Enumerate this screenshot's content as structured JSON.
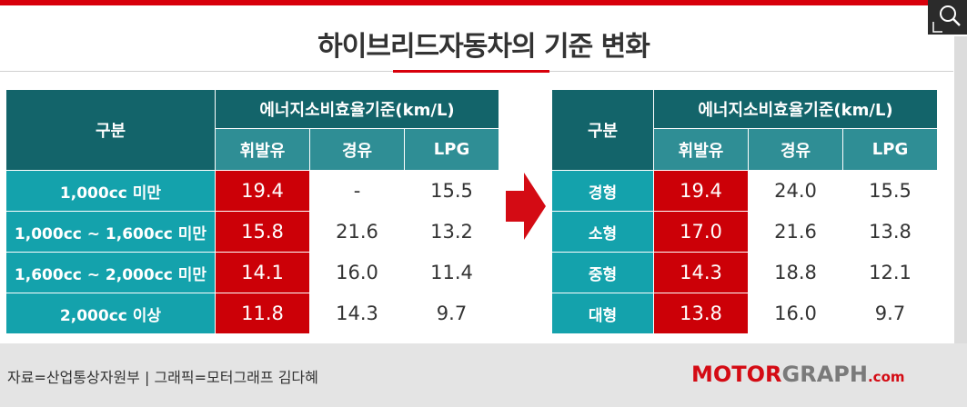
{
  "title": "하이브리드자동차의 기준 변화",
  "left_table": {
    "corner_header": "구분",
    "group_header": "에너지소비효율기준(km/L)",
    "fuel_headers": [
      "휘발유",
      "경유",
      "LPG"
    ],
    "rows": [
      {
        "category": "1,000cc 미만",
        "gasoline": "19.4",
        "diesel": "-",
        "lpg": "15.5"
      },
      {
        "category": "1,000cc ~ 1,600cc 미만",
        "gasoline": "15.8",
        "diesel": "21.6",
        "lpg": "13.2"
      },
      {
        "category": "1,600cc ~ 2,000cc 미만",
        "gasoline": "14.1",
        "diesel": "16.0",
        "lpg": "11.4"
      },
      {
        "category": "2,000cc 이상",
        "gasoline": "11.8",
        "diesel": "14.3",
        "lpg": "9.7"
      }
    ]
  },
  "right_table": {
    "corner_header": "구분",
    "group_header": "에너지소비효율기준(km/L)",
    "fuel_headers": [
      "휘발유",
      "경유",
      "LPG"
    ],
    "rows": [
      {
        "category": "경형",
        "gasoline": "19.4",
        "diesel": "24.0",
        "lpg": "15.5"
      },
      {
        "category": "소형",
        "gasoline": "17.0",
        "diesel": "21.6",
        "lpg": "13.8"
      },
      {
        "category": "중형",
        "gasoline": "14.3",
        "diesel": "18.8",
        "lpg": "12.1"
      },
      {
        "category": "대형",
        "gasoline": "13.8",
        "diesel": "16.0",
        "lpg": "9.7"
      }
    ]
  },
  "footer": {
    "source": "자료=산업통상자원부 | 그래픽=모터그래프 김다혜",
    "brand_part1": "MOTOR",
    "brand_part2": "GRAPH",
    "brand_part3": ".com"
  },
  "colors": {
    "accent_red": "#d8000b",
    "header_dark_teal": "#13646a",
    "header_mid_teal": "#2f8e95",
    "category_teal": "#14a2ac",
    "highlight_red": "#cc0007"
  },
  "icons": {
    "search": "magnifier-icon",
    "arrow": "right-arrow-icon"
  }
}
